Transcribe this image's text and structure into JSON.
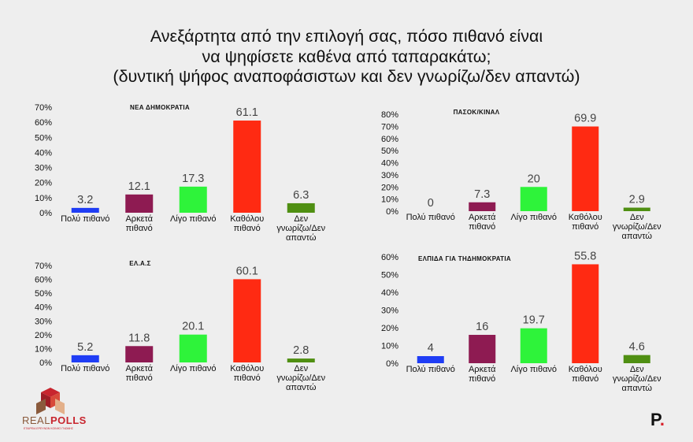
{
  "header": {
    "title_lines": [
      "Ανεξάρτητα από την επιλογή σας, πόσο πιθανό είναι",
      "να ψηφίσετε καθένα από ταπαρακάτω;",
      "(δυντική ψήφος αναποφάσιστων και δεν γνωρίζω/δεν απαντώ)"
    ]
  },
  "chart_data": [
    {
      "type": "bar",
      "title": "ΝΕΑ ΔΗΜΟΚΡΑΤΙΑ",
      "categories": [
        "Πολύ πιθανό",
        "Αρκετά πιθανό",
        "Λίγο πιθανό",
        "Καθόλου πιθανό",
        "Δεν γνωρίζω/Δεν απαντώ"
      ],
      "values": [
        3.2,
        12.1,
        17.3,
        61.1,
        6.3
      ],
      "value_labels": [
        "3.2",
        "12.1",
        "17.3",
        "61.1",
        "6.3"
      ],
      "ylim": [
        0,
        70
      ],
      "yticks": [
        0,
        10,
        20,
        30,
        40,
        50,
        60,
        70
      ],
      "ytick_labels": [
        "0%",
        "10%",
        "20%",
        "30%",
        "40%",
        "50%",
        "60%",
        "70%"
      ],
      "colors": [
        "#1f3df5",
        "#8e1b52",
        "#2ef33a",
        "#ff2a12",
        "#4f8f12"
      ]
    },
    {
      "type": "bar",
      "title": "ΠΑΣΟΚ/ΚΙΝΑΛ",
      "categories": [
        "Πολύ πιθανό",
        "Αρκετά πιθανό",
        "Λίγο πιθανό",
        "Καθόλου πιθανό",
        "Δεν γνωρίζω/Δεν απαντώ"
      ],
      "values": [
        0,
        7.3,
        20,
        69.9,
        2.9
      ],
      "value_labels": [
        "0",
        "7.3",
        "20",
        "69.9",
        "2.9"
      ],
      "ylim": [
        0,
        80
      ],
      "yticks": [
        0,
        10,
        20,
        30,
        40,
        50,
        60,
        70,
        80
      ],
      "ytick_labels": [
        "0%",
        "10%",
        "20%",
        "30%",
        "40%",
        "50%",
        "60%",
        "70%",
        "80%"
      ],
      "colors": [
        "#1f3df5",
        "#8e1b52",
        "#2ef33a",
        "#ff2a12",
        "#4f8f12"
      ]
    },
    {
      "type": "bar",
      "title": "ΕΛ.Α.Σ",
      "categories": [
        "Πολύ πιθανό",
        "Αρκετά πιθανό",
        "Λίγο πιθανό",
        "Καθόλου πιθανό",
        "Δεν γνωρίζω/Δεν απαντώ"
      ],
      "values": [
        5.2,
        11.8,
        20.1,
        60.1,
        2.8
      ],
      "value_labels": [
        "5.2",
        "11.8",
        "20.1",
        "60.1",
        "2.8"
      ],
      "ylim": [
        0,
        70
      ],
      "yticks": [
        0,
        10,
        20,
        30,
        40,
        50,
        60,
        70
      ],
      "ytick_labels": [
        "0%",
        "10%",
        "20%",
        "30%",
        "40%",
        "50%",
        "60%",
        "70%"
      ],
      "colors": [
        "#1f3df5",
        "#8e1b52",
        "#2ef33a",
        "#ff2a12",
        "#4f8f12"
      ]
    },
    {
      "type": "bar",
      "title": "ΕΛΠΙΔΑ ΓΙΑ ΤΗΔΗΜΟΚΡΑΤΙΑ",
      "categories": [
        "Πολύ πιθανό",
        "Αρκετά πιθανό",
        "Λίγο πιθανό",
        "Καθόλου πιθανό",
        "Δεν γνωρίζω/Δεν απαντώ"
      ],
      "values": [
        4,
        16,
        19.7,
        55.8,
        4.6
      ],
      "value_labels": [
        "4",
        "16",
        "19.7",
        "55.8",
        "4.6"
      ],
      "ylim": [
        0,
        60
      ],
      "yticks": [
        0,
        10,
        20,
        30,
        40,
        50,
        60
      ],
      "ytick_labels": [
        "0%",
        "10%",
        "20%",
        "30%",
        "40%",
        "50%",
        "60%"
      ],
      "colors": [
        "#1f3df5",
        "#8e1b52",
        "#2ef33a",
        "#ff2a12",
        "#4f8f12"
      ]
    }
  ],
  "branding": {
    "logo_text_1": "REAL",
    "logo_text_2": "POLLS",
    "logo_tagline": "ΕΤΑΙΡΕΙΑ ΕΡΕΥΝΩΝ ΚΟΙΝΗΣ ΓΝΩΜΗΣ",
    "publisher_mark": "P",
    "publisher_dot": ".",
    "logo_colors": [
      "#c8252e",
      "#8a5a3c",
      "#e3b08a"
    ]
  }
}
